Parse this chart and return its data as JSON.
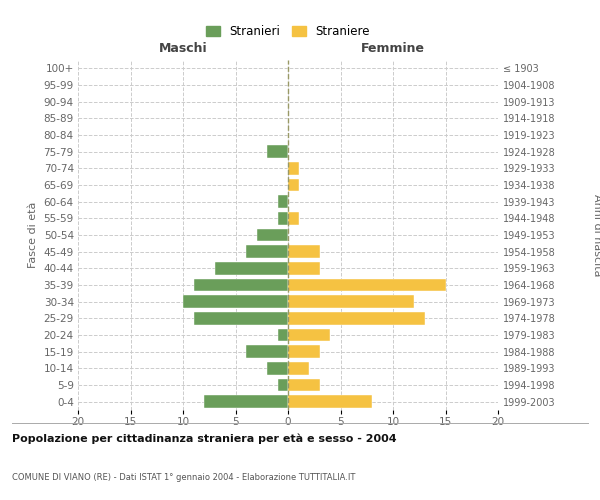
{
  "age_groups": [
    "0-4",
    "5-9",
    "10-14",
    "15-19",
    "20-24",
    "25-29",
    "30-34",
    "35-39",
    "40-44",
    "45-49",
    "50-54",
    "55-59",
    "60-64",
    "65-69",
    "70-74",
    "75-79",
    "80-84",
    "85-89",
    "90-94",
    "95-99",
    "100+"
  ],
  "birth_years": [
    "1999-2003",
    "1994-1998",
    "1989-1993",
    "1984-1988",
    "1979-1983",
    "1974-1978",
    "1969-1973",
    "1964-1968",
    "1959-1963",
    "1954-1958",
    "1949-1953",
    "1944-1948",
    "1939-1943",
    "1934-1938",
    "1929-1933",
    "1924-1928",
    "1919-1923",
    "1914-1918",
    "1909-1913",
    "1904-1908",
    "≤ 1903"
  ],
  "males": [
    8,
    1,
    2,
    4,
    1,
    9,
    10,
    9,
    7,
    4,
    3,
    1,
    1,
    0,
    0,
    2,
    0,
    0,
    0,
    0,
    0
  ],
  "females": [
    8,
    3,
    2,
    3,
    4,
    13,
    12,
    15,
    3,
    3,
    0,
    1,
    0,
    1,
    1,
    0,
    0,
    0,
    0,
    0,
    0
  ],
  "male_color": "#6a9e5a",
  "female_color": "#f5c242",
  "title_main": "Popolazione per cittadinanza straniera per età e sesso - 2004",
  "title_sub": "COMUNE DI VIANO (RE) - Dati ISTAT 1° gennaio 2004 - Elaborazione TUTTITALIA.IT",
  "ylabel_left": "Fasce di età",
  "ylabel_right": "Anni di nascita",
  "xlabel_left": "Maschi",
  "xlabel_right": "Femmine",
  "legend_male": "Stranieri",
  "legend_female": "Straniere",
  "xlim": 20,
  "background_color": "#ffffff",
  "grid_color": "#cccccc"
}
